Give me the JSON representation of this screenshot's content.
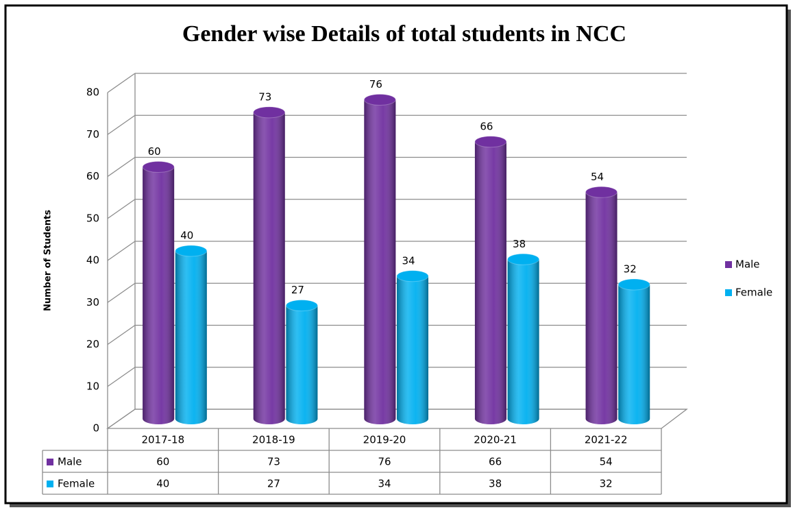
{
  "chart_data": {
    "type": "bar",
    "title": "Gender wise Details of total students in NCC",
    "y_axis_label": "Number of Students",
    "categories": [
      "2017-18",
      "2018-19",
      "2019-20",
      "2020-21",
      "2021-22"
    ],
    "series": [
      {
        "name": "Male",
        "color": "#7030a0",
        "values": [
          60,
          73,
          76,
          66,
          54
        ]
      },
      {
        "name": "Female",
        "color": "#00b0f0",
        "values": [
          40,
          27,
          34,
          38,
          32
        ]
      }
    ],
    "ylim": [
      0,
      80
    ],
    "yticks": [
      0,
      10,
      20,
      30,
      40,
      50,
      60,
      70,
      80
    ],
    "grid": true,
    "legend": "right",
    "data_table": true
  }
}
